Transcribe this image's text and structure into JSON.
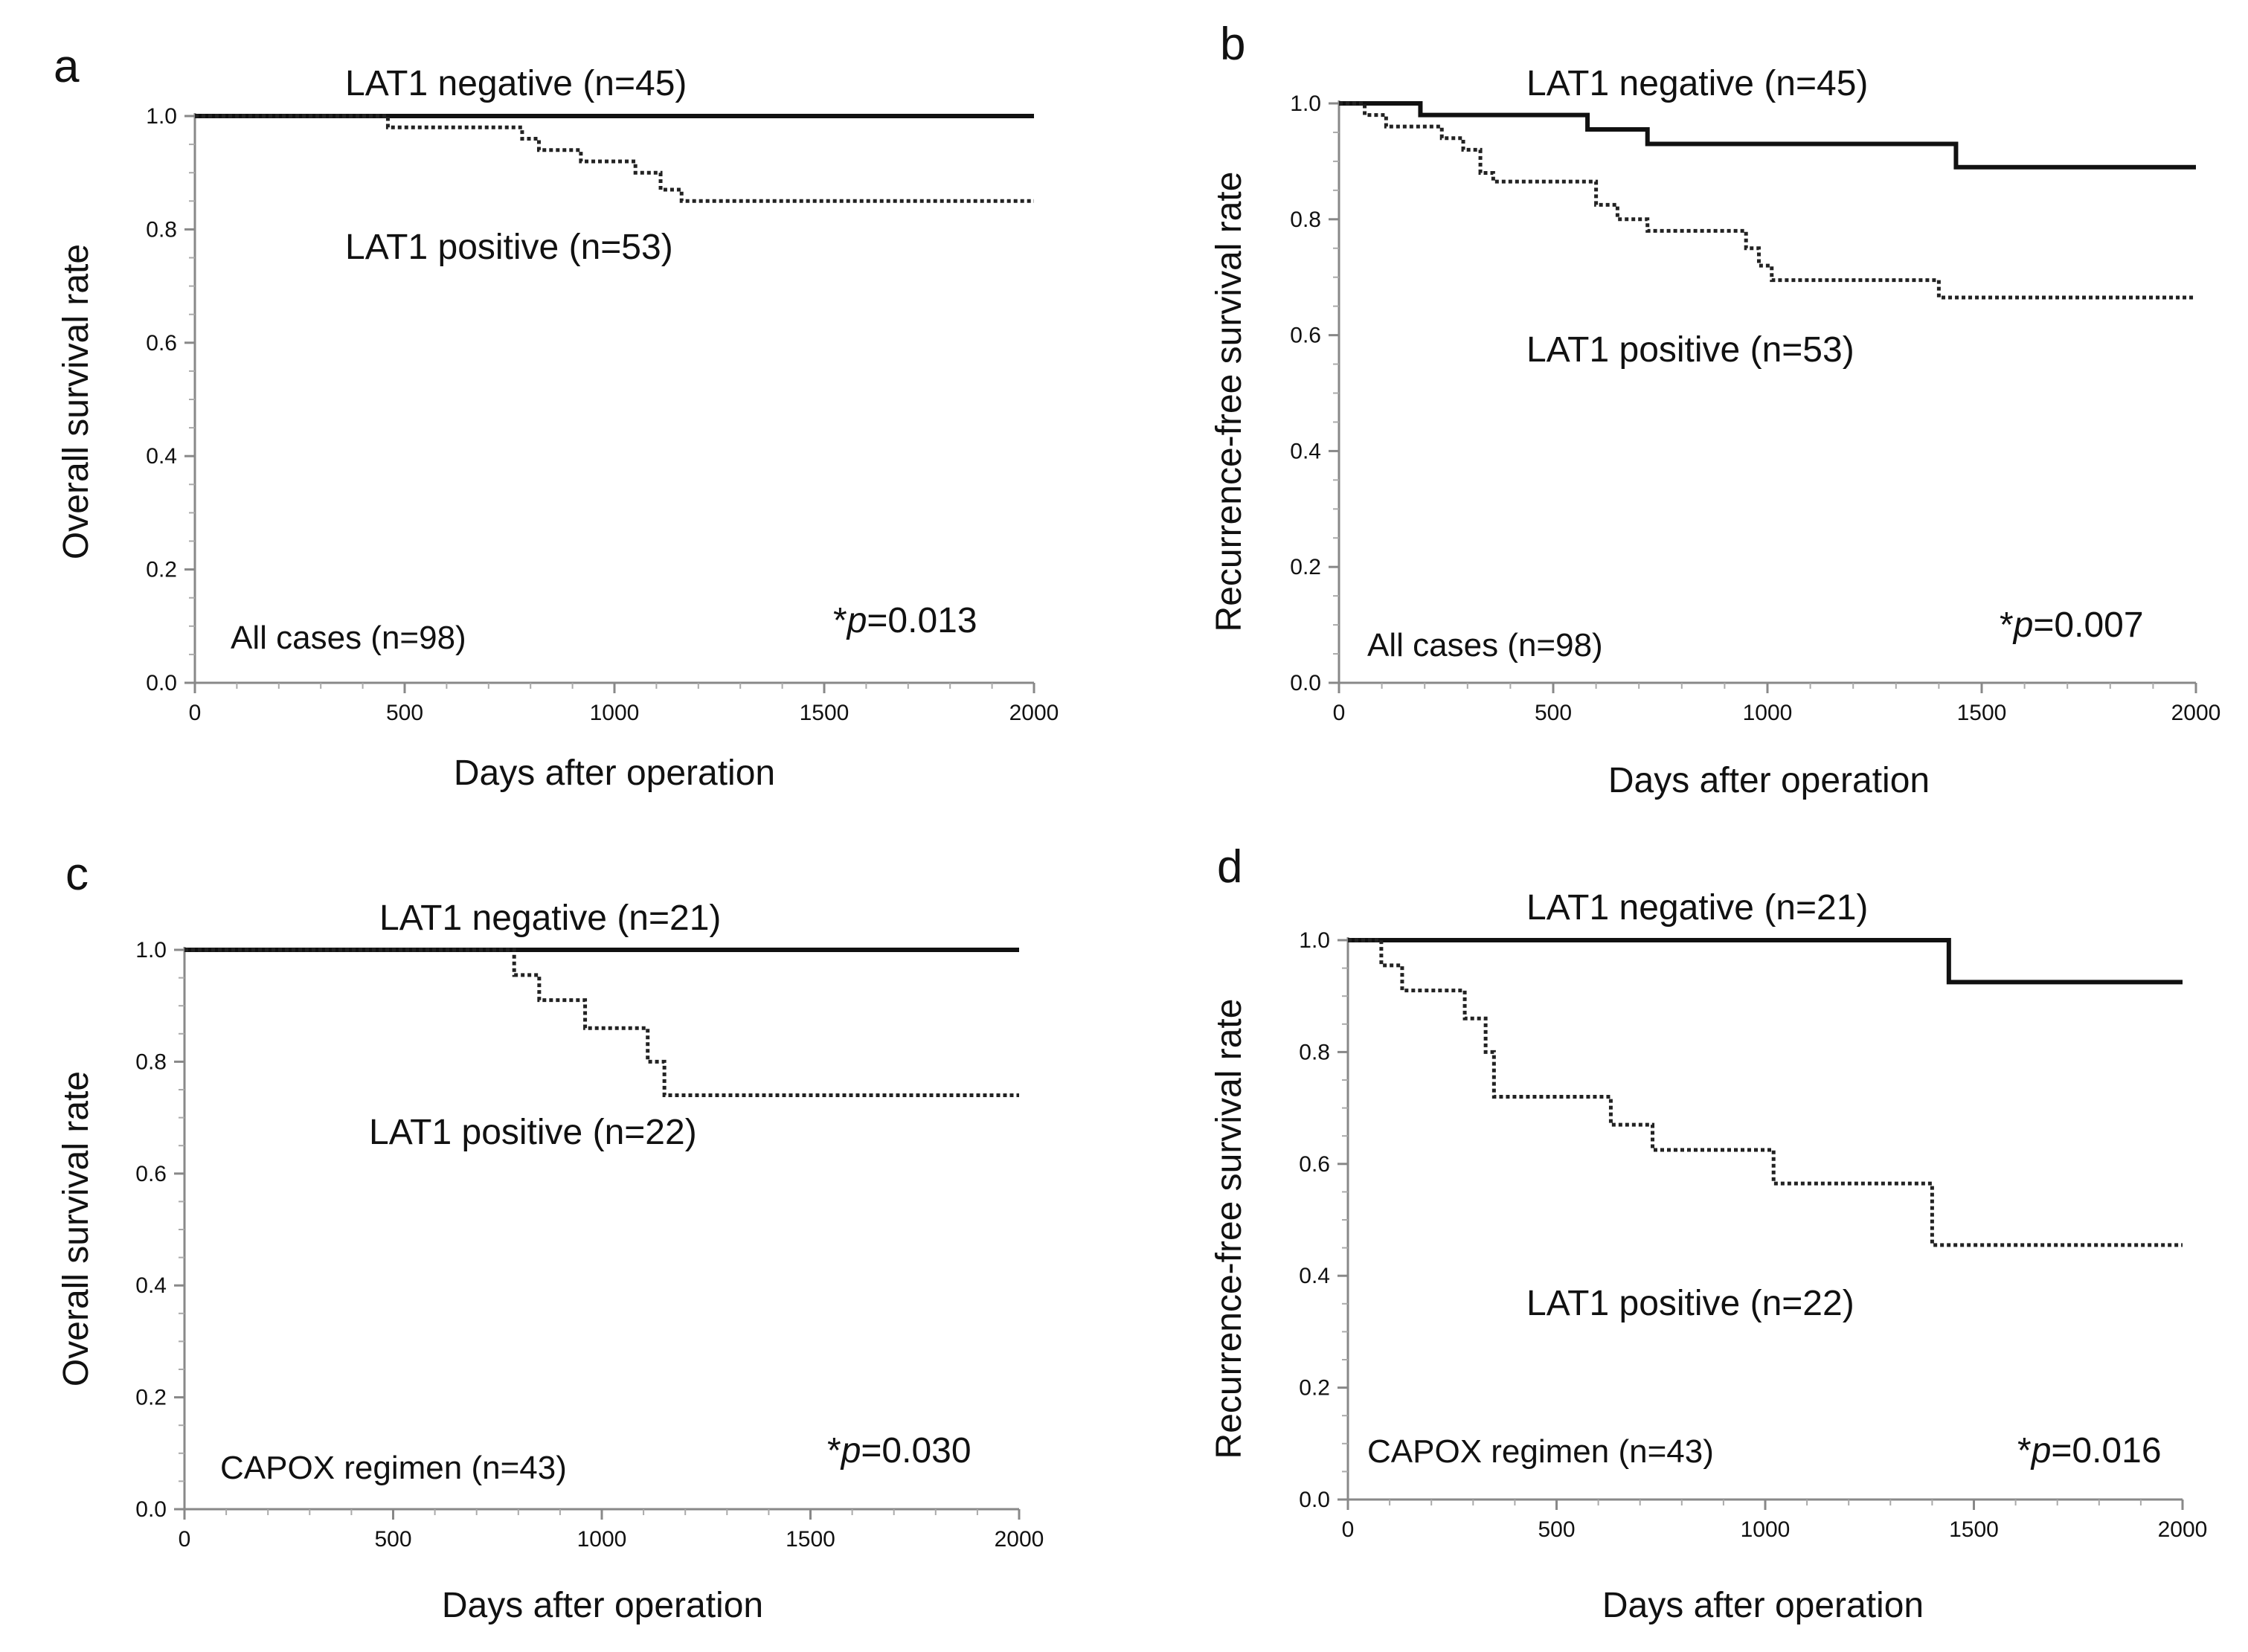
{
  "chart_data": [
    {
      "panel": "a",
      "type": "line",
      "title": "",
      "xlabel": "Days after operation",
      "ylabel": "Overall survival rate",
      "xlim": [
        0,
        2000
      ],
      "ylim": [
        0,
        1.0
      ],
      "xticks": [
        0,
        500,
        1000,
        1500,
        2000
      ],
      "yticks": [
        0.0,
        0.2,
        0.4,
        0.6,
        0.8,
        1.0
      ],
      "xtick_labels": [
        "0",
        "500",
        "1000",
        "1500",
        "2000"
      ],
      "ytick_labels": [
        "0.0",
        "0.2",
        "0.4",
        "0.6",
        "0.8",
        "1.0"
      ],
      "cohort": "All cases (n=98)",
      "p_prefix": "*",
      "p_symbol": "p",
      "p_value": "=0.013",
      "grid": false,
      "series": [
        {
          "name": "LAT1 negative (n=45)",
          "style": "solid",
          "x": [
            0,
            2000
          ],
          "y": [
            1.0,
            1.0
          ]
        },
        {
          "name": "LAT1 positive (n=53)",
          "style": "dotted",
          "x": [
            0,
            460,
            780,
            820,
            920,
            1050,
            1110,
            1160,
            2000
          ],
          "y": [
            1.0,
            0.98,
            0.96,
            0.94,
            0.92,
            0.9,
            0.87,
            0.85,
            0.85
          ]
        }
      ]
    },
    {
      "panel": "b",
      "type": "line",
      "title": "",
      "xlabel": "Days after operation",
      "ylabel": "Recurrence-free survival rate",
      "xlim": [
        0,
        2000
      ],
      "ylim": [
        0,
        1.0
      ],
      "xticks": [
        0,
        500,
        1000,
        1500,
        2000
      ],
      "yticks": [
        0.0,
        0.2,
        0.4,
        0.6,
        0.8,
        1.0
      ],
      "xtick_labels": [
        "0",
        "500",
        "1000",
        "1500",
        "2000"
      ],
      "ytick_labels": [
        "0.0",
        "0.2",
        "0.4",
        "0.6",
        "0.8",
        "1.0"
      ],
      "cohort": "All cases (n=98)",
      "p_prefix": "*",
      "p_symbol": "p",
      "p_value": "=0.007",
      "grid": false,
      "series": [
        {
          "name": "LAT1 negative (n=45)",
          "style": "solid",
          "x": [
            0,
            190,
            580,
            720,
            1440,
            2000
          ],
          "y": [
            1.0,
            0.98,
            0.955,
            0.93,
            0.89,
            0.89
          ]
        },
        {
          "name": "LAT1 positive (n=53)",
          "style": "dotted",
          "x": [
            0,
            60,
            110,
            240,
            290,
            330,
            360,
            600,
            650,
            720,
            950,
            980,
            1010,
            1400,
            2000
          ],
          "y": [
            1.0,
            0.98,
            0.96,
            0.94,
            0.92,
            0.88,
            0.865,
            0.825,
            0.8,
            0.78,
            0.75,
            0.72,
            0.695,
            0.665,
            0.665
          ]
        }
      ]
    },
    {
      "panel": "c",
      "type": "line",
      "title": "",
      "xlabel": "Days after operation",
      "ylabel": "Overall survival rate",
      "xlim": [
        0,
        2000
      ],
      "ylim": [
        0,
        1.0
      ],
      "xticks": [
        0,
        500,
        1000,
        1500,
        2000
      ],
      "yticks": [
        0.0,
        0.2,
        0.4,
        0.6,
        0.8,
        1.0
      ],
      "xtick_labels": [
        "0",
        "500",
        "1000",
        "1500",
        "2000"
      ],
      "ytick_labels": [
        "0.0",
        "0.2",
        "0.4",
        "0.6",
        "0.8",
        "1.0"
      ],
      "cohort": "CAPOX regimen (n=43)",
      "p_prefix": "*",
      "p_symbol": "p",
      "p_value": "=0.030",
      "grid": false,
      "series": [
        {
          "name": "LAT1 negative (n=21)",
          "style": "solid",
          "x": [
            0,
            2000
          ],
          "y": [
            1.0,
            1.0
          ]
        },
        {
          "name": "LAT1 positive (n=22)",
          "style": "dotted",
          "x": [
            0,
            790,
            850,
            960,
            1110,
            1150,
            2000
          ],
          "y": [
            1.0,
            0.955,
            0.91,
            0.86,
            0.8,
            0.74,
            0.74
          ]
        }
      ]
    },
    {
      "panel": "d",
      "type": "line",
      "title": "",
      "xlabel": "Days after operation",
      "ylabel": "Recurrence-free survival rate",
      "xlim": [
        0,
        2000
      ],
      "ylim": [
        0,
        1.0
      ],
      "xticks": [
        0,
        500,
        1000,
        1500,
        2000
      ],
      "yticks": [
        0.0,
        0.2,
        0.4,
        0.6,
        0.8,
        1.0
      ],
      "xtick_labels": [
        "0",
        "500",
        "1000",
        "1500",
        "2000"
      ],
      "ytick_labels": [
        "0.0",
        "0.2",
        "0.4",
        "0.6",
        "0.8",
        "1.0"
      ],
      "cohort": "CAPOX regimen (n=43)",
      "p_prefix": "*",
      "p_symbol": "p",
      "p_value": "=0.016",
      "grid": false,
      "series": [
        {
          "name": "LAT1 negative (n=21)",
          "style": "solid",
          "x": [
            0,
            1440,
            2000
          ],
          "y": [
            1.0,
            0.925,
            0.925
          ]
        },
        {
          "name": "LAT1 positive (n=22)",
          "style": "dotted",
          "x": [
            0,
            80,
            130,
            280,
            330,
            350,
            630,
            730,
            1020,
            1400,
            2000
          ],
          "y": [
            1.0,
            0.955,
            0.91,
            0.86,
            0.8,
            0.72,
            0.67,
            0.625,
            0.565,
            0.455,
            0.455
          ]
        }
      ]
    }
  ]
}
